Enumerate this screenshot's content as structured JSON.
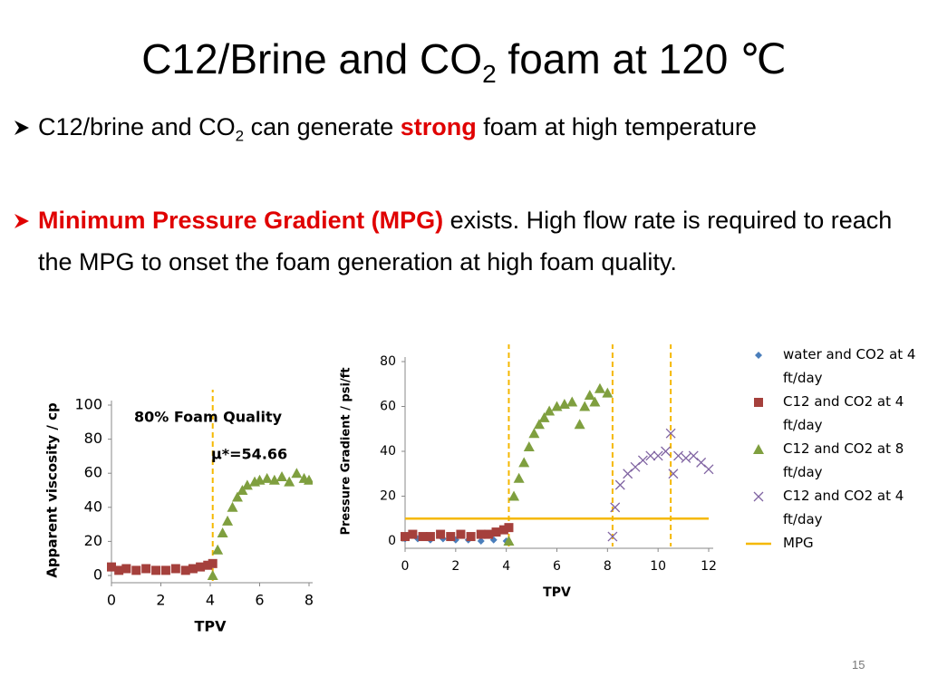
{
  "slide": {
    "title": [
      "C12/Brine and CO",
      "2",
      " foam at 120 ℃"
    ],
    "bullets": [
      [
        "C12/brine and CO",
        "2",
        " can generate ",
        "strong",
        " foam at high temperature"
      ],
      [
        "Minimum Pressure Gradient (MPG)",
        " exists. High flow rate is required to reach the MPG to onset the foam generation at high foam quality."
      ]
    ],
    "page_number": "15"
  },
  "chart_data": [
    {
      "type": "scatter",
      "xlabel": "TPV",
      "ylabel": "Apparent viscosity / cp",
      "annotations": [
        "80% Foam Quality",
        "μ*=54.66"
      ],
      "xlim": [
        0,
        8
      ],
      "xticks": [
        0,
        2,
        4,
        6,
        8
      ],
      "ylim": [
        0,
        100
      ],
      "yticks": [
        0,
        20,
        40,
        60,
        80,
        100
      ],
      "vlines": [
        4.1
      ],
      "vline_color": "#f5b800",
      "series": [
        {
          "color": "#a5403c",
          "marker": "square",
          "x": [
            0,
            0.3,
            0.6,
            1,
            1.4,
            1.8,
            2.2,
            2.6,
            3,
            3.3,
            3.6,
            3.9,
            4.1
          ],
          "values": [
            5,
            3,
            4,
            3,
            4,
            3,
            3,
            4,
            3,
            4,
            5,
            6,
            7
          ]
        },
        {
          "color": "#7f9f3f",
          "marker": "triangle",
          "x": [
            4.1,
            4.3,
            4.5,
            4.7,
            4.9,
            5.1,
            5.3,
            5.5,
            5.8,
            6.0,
            6.3,
            6.6,
            6.9,
            7.2,
            7.5,
            7.8,
            8
          ],
          "values": [
            0,
            15,
            25,
            32,
            40,
            46,
            50,
            53,
            55,
            56,
            57,
            56,
            58,
            55,
            60,
            57,
            56
          ]
        }
      ]
    },
    {
      "type": "scatter",
      "xlabel": "TPV",
      "ylabel": "Pressure Gradient / psi/ft",
      "xlim": [
        0,
        12
      ],
      "xticks": [
        0,
        2,
        4,
        6,
        8,
        10,
        12
      ],
      "ylim": [
        0,
        80
      ],
      "yticks": [
        0,
        20,
        40,
        60,
        80
      ],
      "vlines": [
        4.1,
        8.2,
        10.5
      ],
      "vline_color": "#f5b800",
      "series": [
        {
          "name": "water and CO2 at 4 ft/day",
          "color": "#4a7ebb",
          "marker": "diamond",
          "x": [
            0,
            0.5,
            1,
            1.5,
            2,
            2.5,
            3,
            3.5,
            4
          ],
          "values": [
            1,
            1,
            0.5,
            1,
            0.5,
            0.5,
            0,
            0.5,
            0
          ]
        },
        {
          "name": "C12 and CO2 at 4 ft/day",
          "color": "#a5403c",
          "marker": "square",
          "x": [
            0,
            0.3,
            0.7,
            1,
            1.4,
            1.8,
            2.2,
            2.6,
            3,
            3.3,
            3.6,
            3.9,
            4.1
          ],
          "values": [
            2,
            3,
            2,
            2,
            3,
            2,
            3,
            2,
            3,
            3,
            4,
            5,
            6
          ]
        },
        {
          "name": "C12 and CO2 at 8 ft/day",
          "color": "#7f9f3f",
          "marker": "triangle",
          "x": [
            4.1,
            4.3,
            4.5,
            4.7,
            4.9,
            5.1,
            5.3,
            5.5,
            5.7,
            6,
            6.3,
            6.6,
            6.9,
            7.1,
            7.3,
            7.5,
            7.7,
            8
          ],
          "values": [
            0,
            20,
            28,
            35,
            42,
            48,
            52,
            55,
            58,
            60,
            61,
            62,
            52,
            60,
            65,
            62,
            68,
            66
          ]
        },
        {
          "name": "C12 and CO2 at 4 ft/day",
          "color": "#8064a2",
          "marker": "x",
          "x": [
            8.2,
            8.3,
            8.5,
            8.8,
            9.1,
            9.4,
            9.7,
            10,
            10.3,
            10.5,
            10.6,
            10.8,
            11.1,
            11.4,
            11.7,
            12
          ],
          "values": [
            2,
            15,
            25,
            30,
            33,
            36,
            38,
            38,
            40,
            48,
            30,
            38,
            37,
            38,
            35,
            32
          ]
        },
        {
          "name": "MPG",
          "color": "#f5b800",
          "marker": "line",
          "x": [
            0,
            12
          ],
          "values": [
            10,
            10
          ]
        }
      ]
    }
  ]
}
